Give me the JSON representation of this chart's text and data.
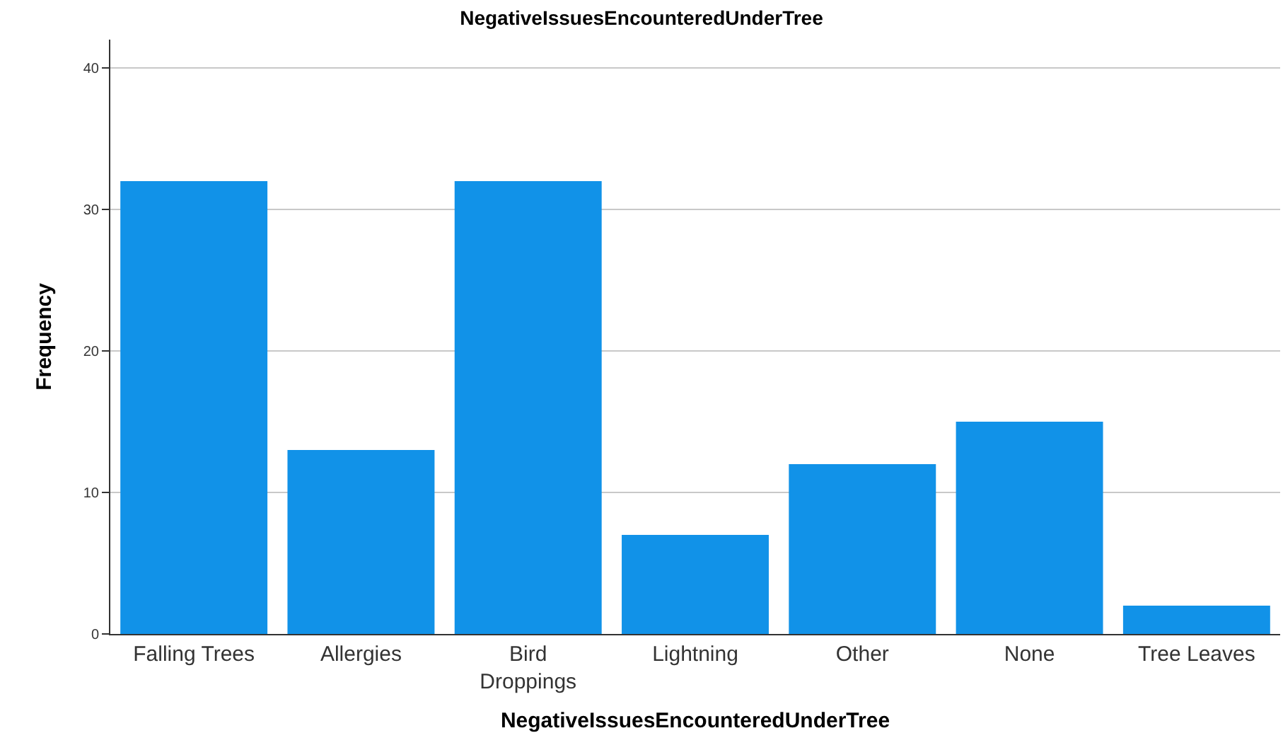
{
  "chart_data": {
    "type": "bar",
    "title": "NegativeIssuesEncounteredUnderTree",
    "xlabel": "NegativeIssuesEncounteredUnderTree",
    "ylabel": "Frequency",
    "categories": [
      "Falling Trees",
      "Allergies",
      "Bird\nDroppings",
      "Lightning",
      "Other",
      "None",
      "Tree Leaves"
    ],
    "values": [
      32,
      13,
      32,
      7,
      12,
      15,
      2
    ],
    "color": "#1192e8",
    "ylim": [
      0,
      42
    ],
    "yticks": [
      0,
      10,
      20,
      30,
      40
    ],
    "grid": "y",
    "legend": false
  }
}
